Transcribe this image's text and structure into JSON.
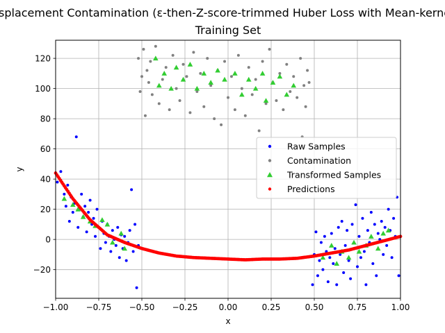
{
  "chart_data": {
    "type": "scatter",
    "title": "Displacement Contamination (ε-then-Z-score-trimmed Huber Loss with Mean-kernel)",
    "subtitle": "Training Set",
    "xlabel": "x",
    "ylabel": "y",
    "xlim": [
      -1.0,
      1.0
    ],
    "ylim": [
      -39,
      132
    ],
    "xticks": [
      -1.0,
      -0.75,
      -0.5,
      -0.25,
      0.0,
      0.25,
      0.5,
      0.75,
      1.0
    ],
    "xtick_labels": [
      "−1.00",
      "−0.75",
      "−0.50",
      "−0.25",
      "0.00",
      "0.25",
      "0.50",
      "0.75",
      "1.00"
    ],
    "yticks": [
      -20,
      0,
      20,
      40,
      60,
      80,
      100,
      120
    ],
    "ytick_labels": [
      "−20",
      "0",
      "20",
      "40",
      "60",
      "80",
      "100",
      "120"
    ],
    "grid": true,
    "legend": {
      "placement": "center-right"
    },
    "series": [
      {
        "name": "Raw Samples",
        "marker": "circle",
        "color": "#0000ff",
        "points": [
          [
            -0.99,
            38
          ],
          [
            -0.97,
            45
          ],
          [
            -0.95,
            30
          ],
          [
            -0.94,
            22
          ],
          [
            -0.93,
            36
          ],
          [
            -0.92,
            12
          ],
          [
            -0.91,
            28
          ],
          [
            -0.9,
            18
          ],
          [
            -0.89,
            24
          ],
          [
            -0.88,
            68
          ],
          [
            -0.87,
            8
          ],
          [
            -0.86,
            20
          ],
          [
            -0.85,
            30
          ],
          [
            -0.84,
            15
          ],
          [
            -0.83,
            22
          ],
          [
            -0.82,
            5
          ],
          [
            -0.81,
            18
          ],
          [
            -0.8,
            26
          ],
          [
            -0.79,
            10
          ],
          [
            -0.78,
            14
          ],
          [
            -0.77,
            2
          ],
          [
            -0.76,
            20
          ],
          [
            -0.75,
            8
          ],
          [
            -0.74,
            -6
          ],
          [
            -0.73,
            12
          ],
          [
            -0.72,
            4
          ],
          [
            -0.71,
            -2
          ],
          [
            -0.7,
            10
          ],
          [
            -0.69,
            2
          ],
          [
            -0.68,
            -8
          ],
          [
            -0.67,
            6
          ],
          [
            -0.66,
            0
          ],
          [
            -0.65,
            -4
          ],
          [
            -0.64,
            8
          ],
          [
            -0.63,
            -12
          ],
          [
            -0.62,
            3
          ],
          [
            -0.61,
            -6
          ],
          [
            -0.6,
            2
          ],
          [
            -0.59,
            -14
          ],
          [
            -0.58,
            -2
          ],
          [
            -0.57,
            6
          ],
          [
            -0.56,
            33
          ],
          [
            -0.55,
            -8
          ],
          [
            -0.54,
            10
          ],
          [
            -0.53,
            -32
          ],
          [
            -0.52,
            -4
          ],
          [
            0.49,
            -30
          ],
          [
            0.5,
            -10
          ],
          [
            0.51,
            5
          ],
          [
            0.52,
            -24
          ],
          [
            0.53,
            -14
          ],
          [
            0.54,
            -2
          ],
          [
            0.55,
            -20
          ],
          [
            0.56,
            2
          ],
          [
            0.57,
            -8
          ],
          [
            0.58,
            -28
          ],
          [
            0.59,
            -12
          ],
          [
            0.6,
            4
          ],
          [
            0.61,
            -16
          ],
          [
            0.62,
            -6
          ],
          [
            0.63,
            -30
          ],
          [
            0.64,
            8
          ],
          [
            0.65,
            -10
          ],
          [
            0.66,
            12
          ],
          [
            0.67,
            -22
          ],
          [
            0.68,
            -4
          ],
          [
            0.69,
            6
          ],
          [
            0.7,
            -14
          ],
          [
            0.71,
            -26
          ],
          [
            0.72,
            10
          ],
          [
            0.73,
            -6
          ],
          [
            0.74,
            23
          ],
          [
            0.75,
            -18
          ],
          [
            0.76,
            2
          ],
          [
            0.77,
            -12
          ],
          [
            0.78,
            14
          ],
          [
            0.79,
            -8
          ],
          [
            0.8,
            -30
          ],
          [
            0.81,
            6
          ],
          [
            0.82,
            -2
          ],
          [
            0.83,
            18
          ],
          [
            0.84,
            -16
          ],
          [
            0.85,
            10
          ],
          [
            0.86,
            -24
          ],
          [
            0.87,
            4
          ],
          [
            0.88,
            0
          ],
          [
            0.89,
            12
          ],
          [
            0.9,
            -10
          ],
          [
            0.91,
            8
          ],
          [
            0.92,
            -4
          ],
          [
            0.93,
            20
          ],
          [
            0.94,
            6
          ],
          [
            0.95,
            -12
          ],
          [
            0.96,
            14
          ],
          [
            0.97,
            2
          ],
          [
            0.98,
            28
          ],
          [
            0.99,
            -24
          ]
        ]
      },
      {
        "name": "Contamination",
        "marker": "circle",
        "color": "#808080",
        "points": [
          [
            -0.52,
            120
          ],
          [
            -0.51,
            98
          ],
          [
            -0.5,
            108
          ],
          [
            -0.49,
            126
          ],
          [
            -0.48,
            82
          ],
          [
            -0.47,
            112
          ],
          [
            -0.46,
            104
          ],
          [
            -0.45,
            118
          ],
          [
            -0.44,
            96
          ],
          [
            -0.42,
            128
          ],
          [
            -0.4,
            90
          ],
          [
            -0.38,
            106
          ],
          [
            -0.36,
            114
          ],
          [
            -0.34,
            86
          ],
          [
            -0.32,
            122
          ],
          [
            -0.3,
            100
          ],
          [
            -0.28,
            92
          ],
          [
            -0.26,
            116
          ],
          [
            -0.24,
            108
          ],
          [
            -0.22,
            84
          ],
          [
            -0.2,
            124
          ],
          [
            -0.18,
            98
          ],
          [
            -0.16,
            110
          ],
          [
            -0.14,
            88
          ],
          [
            -0.12,
            120
          ],
          [
            -0.1,
            102
          ],
          [
            -0.08,
            80
          ],
          [
            -0.06,
            112
          ],
          [
            -0.04,
            76
          ],
          [
            -0.02,
            118
          ],
          [
            0.0,
            94
          ],
          [
            0.02,
            108
          ],
          [
            0.04,
            86
          ],
          [
            0.06,
            122
          ],
          [
            0.08,
            100
          ],
          [
            0.1,
            82
          ],
          [
            0.12,
            114
          ],
          [
            0.14,
            96
          ],
          [
            0.16,
            106
          ],
          [
            0.18,
            72
          ],
          [
            0.2,
            118
          ],
          [
            0.22,
            90
          ],
          [
            0.24,
            126
          ],
          [
            0.26,
            104
          ],
          [
            0.28,
            92
          ],
          [
            0.3,
            110
          ],
          [
            0.32,
            86
          ],
          [
            0.34,
            116
          ],
          [
            0.36,
            98
          ],
          [
            0.38,
            108
          ],
          [
            0.4,
            94
          ],
          [
            0.42,
            120
          ],
          [
            0.43,
            68
          ],
          [
            0.44,
            102
          ],
          [
            0.45,
            88
          ],
          [
            0.46,
            112
          ],
          [
            0.47,
            104
          ]
        ]
      },
      {
        "name": "Transformed Samples",
        "marker": "triangle",
        "color": "#32cd32",
        "points": [
          [
            -0.95,
            27
          ],
          [
            -0.9,
            23
          ],
          [
            -0.87,
            20
          ],
          [
            -0.84,
            15
          ],
          [
            -0.8,
            12
          ],
          [
            -0.77,
            9
          ],
          [
            -0.73,
            13
          ],
          [
            -0.7,
            10
          ],
          [
            -0.67,
            -2
          ],
          [
            -0.62,
            4
          ],
          [
            -0.6,
            -6
          ],
          [
            -0.42,
            120
          ],
          [
            -0.4,
            102
          ],
          [
            -0.37,
            110
          ],
          [
            -0.33,
            100
          ],
          [
            -0.3,
            114
          ],
          [
            -0.26,
            106
          ],
          [
            -0.22,
            116
          ],
          [
            -0.18,
            100
          ],
          [
            -0.14,
            110
          ],
          [
            -0.1,
            104
          ],
          [
            -0.06,
            112
          ],
          [
            -0.02,
            106
          ],
          [
            0.04,
            110
          ],
          [
            0.08,
            96
          ],
          [
            0.12,
            106
          ],
          [
            0.16,
            100
          ],
          [
            0.2,
            110
          ],
          [
            0.22,
            92
          ],
          [
            0.26,
            104
          ],
          [
            0.3,
            108
          ],
          [
            0.34,
            96
          ],
          [
            0.38,
            102
          ],
          [
            0.55,
            -12
          ],
          [
            0.6,
            -4
          ],
          [
            0.63,
            -16
          ],
          [
            0.66,
            -8
          ],
          [
            0.7,
            -12
          ],
          [
            0.73,
            -2
          ],
          [
            0.76,
            -8
          ],
          [
            0.8,
            -4
          ],
          [
            0.83,
            2
          ],
          [
            0.87,
            -6
          ],
          [
            0.9,
            4
          ],
          [
            0.93,
            6
          ]
        ]
      },
      {
        "name": "Predictions",
        "marker": "circle",
        "color": "#ff0000",
        "x": [
          -1.0,
          -0.9,
          -0.8,
          -0.7,
          -0.6,
          -0.5,
          -0.4,
          -0.3,
          -0.2,
          -0.1,
          0.0,
          0.1,
          0.2,
          0.3,
          0.4,
          0.5,
          0.6,
          0.7,
          0.8,
          0.9,
          1.0
        ],
        "y": [
          44,
          27,
          13,
          3,
          -2,
          -6,
          -9,
          -11,
          -12,
          -12.5,
          -13,
          -13.5,
          -13,
          -13,
          -12.5,
          -11,
          -9,
          -7,
          -4,
          -1,
          2
        ]
      }
    ]
  }
}
